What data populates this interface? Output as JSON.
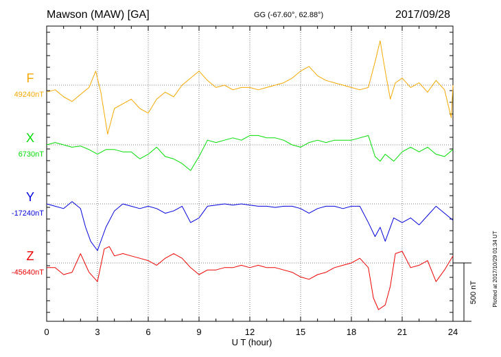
{
  "header": {
    "station": "Mawson (MAW)  [GA]",
    "coords": "GG (-67.60°,  62.88°)",
    "date": "2017/09/28"
  },
  "footer": {
    "plotted_note": "Plotted at 2017/10/29 01:34 UT"
  },
  "chart_data": {
    "type": "line",
    "title": "Mawson (MAW)  [GA]",
    "xlabel": "U T (hour)",
    "xlim": [
      0,
      24
    ],
    "xticks": [
      "0",
      "3",
      "6",
      "9",
      "12",
      "15",
      "18",
      "21",
      "24"
    ],
    "scale_bar": {
      "label": "500 nT",
      "value_nT": 500
    },
    "grid": true,
    "series": [
      {
        "name": "F",
        "baseline_label": "49240nT",
        "baseline_nT": 49240,
        "color": "#f5a800",
        "points": [
          [
            0,
            -60
          ],
          [
            0.5,
            -40
          ],
          [
            1,
            -100
          ],
          [
            1.5,
            -140
          ],
          [
            2,
            -80
          ],
          [
            2.5,
            -20
          ],
          [
            2.9,
            120
          ],
          [
            3.2,
            -60
          ],
          [
            3.6,
            -420
          ],
          [
            4,
            -200
          ],
          [
            4.5,
            -160
          ],
          [
            5,
            -120
          ],
          [
            5.5,
            -200
          ],
          [
            6,
            -240
          ],
          [
            6.5,
            -120
          ],
          [
            7,
            -60
          ],
          [
            7.5,
            -100
          ],
          [
            8,
            0
          ],
          [
            8.5,
            60
          ],
          [
            9,
            120
          ],
          [
            9.5,
            40
          ],
          [
            10,
            -20
          ],
          [
            10.5,
            0
          ],
          [
            11,
            -40
          ],
          [
            11.5,
            -20
          ],
          [
            12,
            -20
          ],
          [
            12.5,
            -40
          ],
          [
            13,
            -20
          ],
          [
            13.5,
            0
          ],
          [
            14,
            20
          ],
          [
            14.5,
            60
          ],
          [
            15,
            120
          ],
          [
            15.5,
            160
          ],
          [
            16,
            80
          ],
          [
            16.5,
            40
          ],
          [
            17,
            20
          ],
          [
            17.5,
            0
          ],
          [
            18,
            -20
          ],
          [
            18.5,
            -40
          ],
          [
            19,
            -20
          ],
          [
            19.4,
            200
          ],
          [
            19.7,
            380
          ],
          [
            20,
            120
          ],
          [
            20.3,
            -120
          ],
          [
            20.6,
            20
          ],
          [
            21,
            60
          ],
          [
            21.5,
            -20
          ],
          [
            22,
            20
          ],
          [
            22.5,
            -60
          ],
          [
            23,
            40
          ],
          [
            23.5,
            -40
          ],
          [
            23.9,
            -280
          ],
          [
            24,
            0
          ]
        ]
      },
      {
        "name": "X",
        "baseline_label": "6730nT",
        "baseline_nT": 6730,
        "color": "#00dd00",
        "points": [
          [
            0,
            0
          ],
          [
            0.5,
            20
          ],
          [
            1,
            0
          ],
          [
            1.5,
            -20
          ],
          [
            2,
            -10
          ],
          [
            2.5,
            -40
          ],
          [
            3,
            -80
          ],
          [
            3.5,
            -40
          ],
          [
            4,
            -40
          ],
          [
            4.5,
            -60
          ],
          [
            5,
            -60
          ],
          [
            5.5,
            -120
          ],
          [
            6,
            -80
          ],
          [
            6.5,
            -20
          ],
          [
            7,
            -100
          ],
          [
            7.5,
            -120
          ],
          [
            8,
            -160
          ],
          [
            8.5,
            -220
          ],
          [
            9,
            -100
          ],
          [
            9.5,
            40
          ],
          [
            10,
            20
          ],
          [
            10.5,
            40
          ],
          [
            11,
            60
          ],
          [
            11.5,
            40
          ],
          [
            12,
            80
          ],
          [
            12.5,
            80
          ],
          [
            13,
            60
          ],
          [
            13.5,
            60
          ],
          [
            14,
            40
          ],
          [
            14.5,
            0
          ],
          [
            15,
            -20
          ],
          [
            15.5,
            20
          ],
          [
            16,
            40
          ],
          [
            16.5,
            20
          ],
          [
            17,
            40
          ],
          [
            17.5,
            40
          ],
          [
            18,
            40
          ],
          [
            18.5,
            60
          ],
          [
            19,
            80
          ],
          [
            19.4,
            -100
          ],
          [
            19.7,
            -140
          ],
          [
            20,
            -80
          ],
          [
            20.5,
            -140
          ],
          [
            21,
            -60
          ],
          [
            21.5,
            -20
          ],
          [
            22,
            -60
          ],
          [
            22.5,
            -20
          ],
          [
            23,
            -80
          ],
          [
            23.5,
            -100
          ],
          [
            24,
            -40
          ]
        ]
      },
      {
        "name": "Y",
        "baseline_label": "-17240nT",
        "baseline_nT": -17240,
        "color": "#0000dd",
        "points": [
          [
            0,
            0
          ],
          [
            0.5,
            -20
          ],
          [
            1,
            -40
          ],
          [
            1.5,
            20
          ],
          [
            2,
            -40
          ],
          [
            2.3,
            -200
          ],
          [
            2.6,
            -320
          ],
          [
            3,
            -400
          ],
          [
            3.5,
            -200
          ],
          [
            4,
            -60
          ],
          [
            4.5,
            0
          ],
          [
            5,
            -20
          ],
          [
            5.5,
            -40
          ],
          [
            6,
            -20
          ],
          [
            6.5,
            -40
          ],
          [
            7,
            -80
          ],
          [
            7.5,
            -60
          ],
          [
            8,
            -20
          ],
          [
            8.5,
            -160
          ],
          [
            9,
            -120
          ],
          [
            9.5,
            -20
          ],
          [
            10,
            -10
          ],
          [
            10.5,
            0
          ],
          [
            11,
            -10
          ],
          [
            11.5,
            0
          ],
          [
            12,
            -10
          ],
          [
            12.5,
            -20
          ],
          [
            13,
            -20
          ],
          [
            13.5,
            -30
          ],
          [
            14,
            -20
          ],
          [
            14.5,
            -20
          ],
          [
            15,
            -40
          ],
          [
            15.5,
            -80
          ],
          [
            16,
            -40
          ],
          [
            16.5,
            -20
          ],
          [
            17,
            -20
          ],
          [
            17.5,
            -40
          ],
          [
            18,
            -20
          ],
          [
            18.5,
            -20
          ],
          [
            19,
            -160
          ],
          [
            19.4,
            -280
          ],
          [
            19.7,
            -200
          ],
          [
            20,
            -320
          ],
          [
            20.5,
            -120
          ],
          [
            21,
            -160
          ],
          [
            21.5,
            -120
          ],
          [
            22,
            -180
          ],
          [
            22.5,
            -100
          ],
          [
            23,
            -20
          ],
          [
            23.5,
            -80
          ],
          [
            24,
            -140
          ]
        ]
      },
      {
        "name": "Z",
        "baseline_label": "-45640nT",
        "baseline_nT": -45640,
        "color": "#ee0000",
        "points": [
          [
            0,
            -40
          ],
          [
            0.5,
            -40
          ],
          [
            1,
            -100
          ],
          [
            1.5,
            -80
          ],
          [
            2,
            80
          ],
          [
            2.5,
            -80
          ],
          [
            3,
            -160
          ],
          [
            3.4,
            120
          ],
          [
            3.7,
            140
          ],
          [
            4,
            60
          ],
          [
            4.5,
            80
          ],
          [
            5,
            60
          ],
          [
            5.5,
            40
          ],
          [
            6,
            20
          ],
          [
            6.5,
            -20
          ],
          [
            7,
            40
          ],
          [
            7.5,
            80
          ],
          [
            8,
            40
          ],
          [
            8.5,
            -40
          ],
          [
            9,
            -100
          ],
          [
            9.5,
            -60
          ],
          [
            10,
            -60
          ],
          [
            10.5,
            -40
          ],
          [
            11,
            -40
          ],
          [
            11.5,
            -20
          ],
          [
            12,
            -40
          ],
          [
            12.5,
            -20
          ],
          [
            13,
            -40
          ],
          [
            13.5,
            -40
          ],
          [
            14,
            -60
          ],
          [
            14.5,
            -80
          ],
          [
            15,
            -120
          ],
          [
            15.5,
            -140
          ],
          [
            16,
            -100
          ],
          [
            16.5,
            -80
          ],
          [
            17,
            -40
          ],
          [
            17.5,
            -20
          ],
          [
            18,
            0
          ],
          [
            18.5,
            40
          ],
          [
            19,
            -40
          ],
          [
            19.3,
            -300
          ],
          [
            19.6,
            -400
          ],
          [
            20,
            -360
          ],
          [
            20.3,
            -200
          ],
          [
            20.6,
            80
          ],
          [
            21,
            100
          ],
          [
            21.5,
            -40
          ],
          [
            22,
            -20
          ],
          [
            22.5,
            20
          ],
          [
            23,
            -160
          ],
          [
            23.5,
            -60
          ],
          [
            24,
            60
          ]
        ]
      }
    ]
  }
}
